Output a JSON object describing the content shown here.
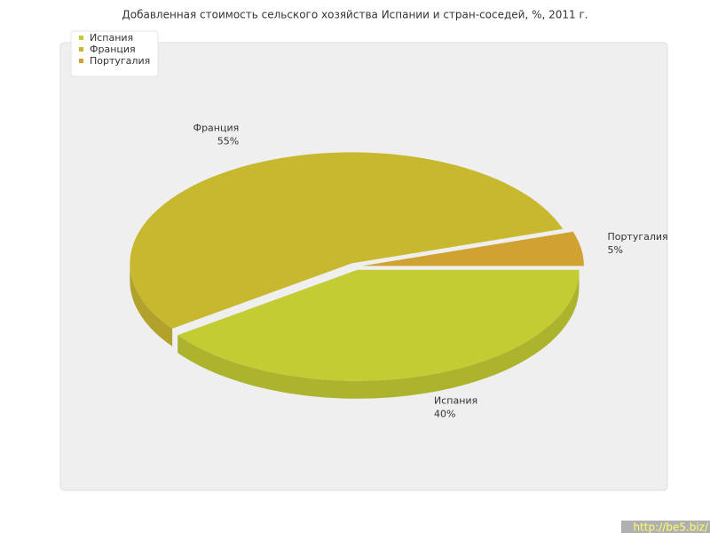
{
  "chart_data": {
    "type": "pie",
    "title": "Добавленная стоимость сельского хозяйства Испании и стран-соседей, %, 2011 г.",
    "categories": [
      "Испания",
      "Франция",
      "Португалия"
    ],
    "values": [
      40,
      55,
      5
    ],
    "value_labels": [
      "40%",
      "55%",
      "5%"
    ],
    "colors": [
      "#c4cc34",
      "#c8b830",
      "#d0a232"
    ],
    "legend": "top-left",
    "watermark": "http://be5.biz/"
  }
}
